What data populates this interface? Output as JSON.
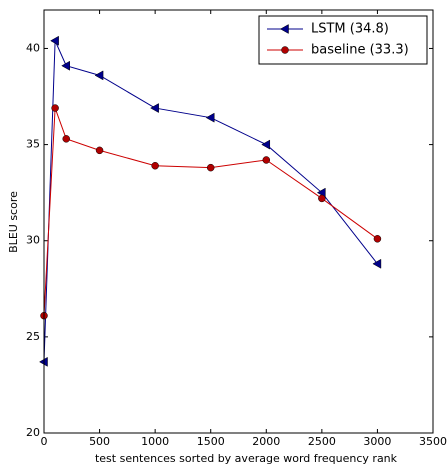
{
  "chart_data": {
    "type": "line",
    "x_label": "test sentences sorted by average word frequency rank",
    "y_label": "BLEU score",
    "x": [
      0,
      100,
      200,
      500,
      1000,
      1500,
      2000,
      2500,
      3000
    ],
    "series": [
      {
        "name": "LSTM  (34.8)",
        "color": "#00008b",
        "marker": "triangle-left",
        "values": [
          23.7,
          40.4,
          39.1,
          38.6,
          36.9,
          36.4,
          35.0,
          32.5,
          28.8
        ]
      },
      {
        "name": "baseline (33.3)",
        "color": "#cc0000",
        "marker": "circle",
        "values": [
          26.1,
          36.9,
          35.3,
          34.7,
          33.9,
          33.8,
          34.2,
          32.2,
          30.1
        ]
      }
    ],
    "xlim": [
      0,
      3500
    ],
    "xticks": [
      0,
      500,
      1000,
      1500,
      2000,
      2500,
      3000,
      3500
    ],
    "ylim": [
      20,
      42
    ],
    "yticks": [
      20,
      25,
      30,
      35,
      40
    ],
    "legend": "upper right"
  }
}
